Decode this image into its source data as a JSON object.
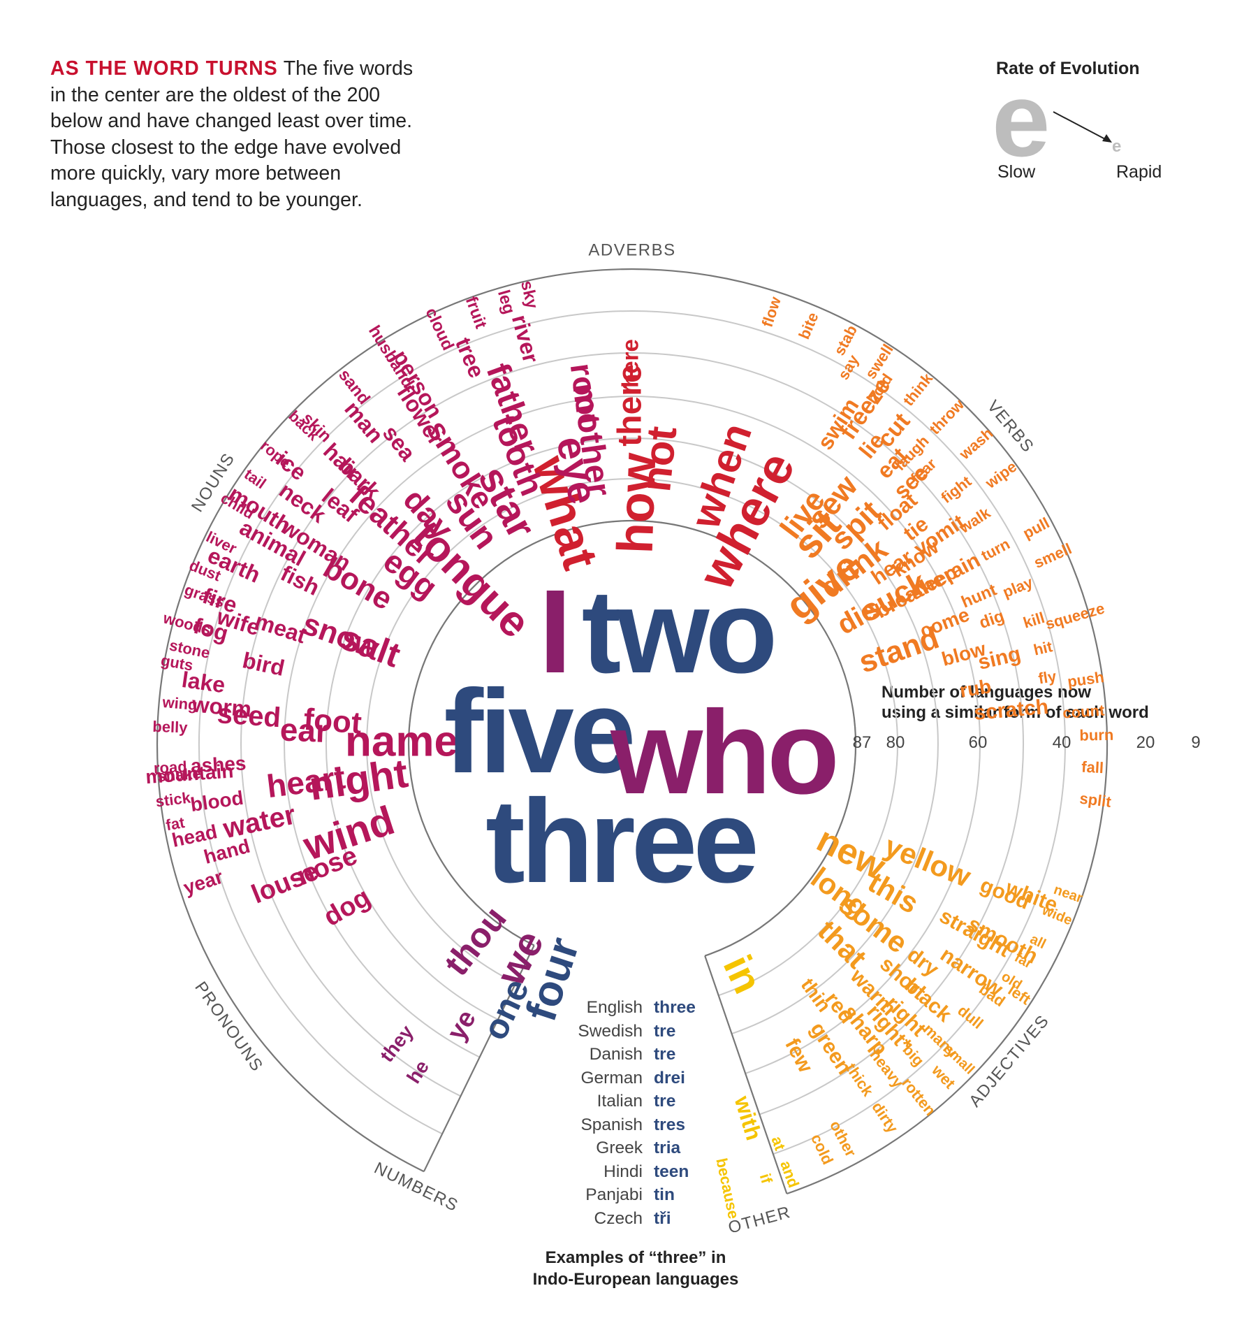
{
  "intro": {
    "heading": "AS THE WORD TURNS",
    "text": "The five words in the center are the oldest of the 200 below and have changed least over time. Those closest to the edge have evolved more quickly, vary more between languages, and tend to be younger."
  },
  "rate_legend": {
    "title": "Rate of Evolution",
    "big_glyph": "e",
    "small_glyph": "e",
    "slow_label": "Slow",
    "rapid_label": "Rapid"
  },
  "scale": {
    "caption_line1": "Number of languages now",
    "caption_line2": "using a similar form of each word",
    "ticks": [
      "87",
      "80",
      "60",
      "40",
      "20",
      "9"
    ]
  },
  "categories": [
    "ADVERBS",
    "VERBS",
    "ADJECTIVES",
    "OTHER",
    "NUMBERS",
    "PRONOUNS",
    "NOUNS"
  ],
  "examples": {
    "caption_line1": "Examples of “three” in",
    "caption_line2": "Indo-European languages",
    "rows": [
      {
        "language": "English",
        "word": "three"
      },
      {
        "language": "Swedish",
        "word": "tre"
      },
      {
        "language": "Danish",
        "word": "tre"
      },
      {
        "language": "German",
        "word": "drei"
      },
      {
        "language": "Italian",
        "word": "tre"
      },
      {
        "language": "Spanish",
        "word": "tres"
      },
      {
        "language": "Greek",
        "word": "tria"
      },
      {
        "language": "Hindi",
        "word": "teen"
      },
      {
        "language": "Panjabi",
        "word": "tin"
      },
      {
        "language": "Czech",
        "word": "tři"
      }
    ]
  },
  "colors": {
    "center_blue": "#2e4a7d",
    "center_purple": "#8a1f6a",
    "heading_red": "#c8102e",
    "ring_gray": "#c8c8c8"
  },
  "center_words": [
    {
      "word": "I",
      "color": "#8a1f6a"
    },
    {
      "word": "two",
      "color": "#2e4a7d"
    },
    {
      "word": "five",
      "color": "#2e4a7d"
    },
    {
      "word": "who",
      "color": "#8a1f6a"
    },
    {
      "word": "three",
      "color": "#2e4a7d"
    }
  ],
  "words": [
    {
      "w": "here",
      "c": "#d0202f"
    },
    {
      "w": "there",
      "c": "#d0202f"
    },
    {
      "w": "not",
      "c": "#d0202f"
    },
    {
      "w": "when",
      "c": "#d0202f"
    },
    {
      "w": "how",
      "c": "#d0202f"
    },
    {
      "w": "where",
      "c": "#d0202f"
    },
    {
      "w": "what",
      "c": "#d0202f"
    },
    {
      "w": "flow",
      "c": "#f07a22"
    },
    {
      "w": "bite",
      "c": "#f07a22"
    },
    {
      "w": "stab",
      "c": "#f07a22"
    },
    {
      "w": "swell",
      "c": "#f07a22"
    },
    {
      "w": "say",
      "c": "#f07a22"
    },
    {
      "w": "hold",
      "c": "#f07a22"
    },
    {
      "w": "think",
      "c": "#f07a22"
    },
    {
      "w": "throw",
      "c": "#f07a22"
    },
    {
      "w": "wash",
      "c": "#f07a22"
    },
    {
      "w": "wipe",
      "c": "#f07a22"
    },
    {
      "w": "pull",
      "c": "#f07a22"
    },
    {
      "w": "smell",
      "c": "#f07a22"
    },
    {
      "w": "squeeze",
      "c": "#f07a22"
    },
    {
      "w": "push",
      "c": "#f07a22"
    },
    {
      "w": "count",
      "c": "#f07a22"
    },
    {
      "w": "burn",
      "c": "#f07a22"
    },
    {
      "w": "fall",
      "c": "#f07a22"
    },
    {
      "w": "split",
      "c": "#f07a22"
    },
    {
      "w": "freeze",
      "c": "#f07a22"
    },
    {
      "w": "cut",
      "c": "#f07a22"
    },
    {
      "w": "laugh",
      "c": "#f07a22"
    },
    {
      "w": "fear",
      "c": "#f07a22"
    },
    {
      "w": "fight",
      "c": "#f07a22"
    },
    {
      "w": "walk",
      "c": "#f07a22"
    },
    {
      "w": "turn",
      "c": "#f07a22"
    },
    {
      "w": "play",
      "c": "#f07a22"
    },
    {
      "w": "kill",
      "c": "#f07a22"
    },
    {
      "w": "hit",
      "c": "#f07a22"
    },
    {
      "w": "fly",
      "c": "#f07a22"
    },
    {
      "w": "swim",
      "c": "#f07a22"
    },
    {
      "w": "lie",
      "c": "#f07a22"
    },
    {
      "w": "eat",
      "c": "#f07a22"
    },
    {
      "w": "see",
      "c": "#f07a22"
    },
    {
      "w": "float",
      "c": "#f07a22"
    },
    {
      "w": "tie",
      "c": "#f07a22"
    },
    {
      "w": "vomit",
      "c": "#f07a22"
    },
    {
      "w": "rain",
      "c": "#f07a22"
    },
    {
      "w": "hunt",
      "c": "#f07a22"
    },
    {
      "w": "dig",
      "c": "#f07a22"
    },
    {
      "w": "sing",
      "c": "#f07a22"
    },
    {
      "w": "scratch",
      "c": "#f07a22"
    },
    {
      "w": "know",
      "c": "#f07a22"
    },
    {
      "w": "sleep",
      "c": "#f07a22"
    },
    {
      "w": "hear",
      "c": "#f07a22"
    },
    {
      "w": "breathe",
      "c": "#f07a22"
    },
    {
      "w": "come",
      "c": "#f07a22"
    },
    {
      "w": "blow",
      "c": "#f07a22"
    },
    {
      "w": "rub",
      "c": "#f07a22"
    },
    {
      "w": "sew",
      "c": "#f07a22"
    },
    {
      "w": "spit",
      "c": "#f07a22"
    },
    {
      "w": "live",
      "c": "#f07a22"
    },
    {
      "w": "sit",
      "c": "#f07a22"
    },
    {
      "w": "drink",
      "c": "#f07a22"
    },
    {
      "w": "give",
      "c": "#f07a22"
    },
    {
      "w": "suck",
      "c": "#f07a22"
    },
    {
      "w": "die",
      "c": "#f07a22"
    },
    {
      "w": "stand",
      "c": "#f07a22"
    },
    {
      "w": "new",
      "c": "#f39a1e"
    },
    {
      "w": "long",
      "c": "#f39a1e"
    },
    {
      "w": "this",
      "c": "#f39a1e"
    },
    {
      "w": "yellow",
      "c": "#f39a1e"
    },
    {
      "w": "that",
      "c": "#f39a1e"
    },
    {
      "w": "some",
      "c": "#f39a1e"
    },
    {
      "w": "thin",
      "c": "#f39a1e"
    },
    {
      "w": "red",
      "c": "#f39a1e"
    },
    {
      "w": "warm",
      "c": "#f39a1e"
    },
    {
      "w": "short",
      "c": "#f39a1e"
    },
    {
      "w": "dry",
      "c": "#f39a1e"
    },
    {
      "w": "straight",
      "c": "#f39a1e"
    },
    {
      "w": "good",
      "c": "#f39a1e"
    },
    {
      "w": "green",
      "c": "#f39a1e"
    },
    {
      "w": "sharp",
      "c": "#f39a1e"
    },
    {
      "w": "right*",
      "c": "#f39a1e"
    },
    {
      "w": "right",
      "c": "#f39a1e"
    },
    {
      "w": "black",
      "c": "#f39a1e"
    },
    {
      "w": "narrow",
      "c": "#f39a1e"
    },
    {
      "w": "smooth",
      "c": "#f39a1e"
    },
    {
      "w": "white",
      "c": "#f39a1e"
    },
    {
      "w": "few",
      "c": "#f39a1e"
    },
    {
      "w": "thick",
      "c": "#f39a1e"
    },
    {
      "w": "heavy",
      "c": "#f39a1e"
    },
    {
      "w": "big",
      "c": "#f39a1e"
    },
    {
      "w": "many",
      "c": "#f39a1e"
    },
    {
      "w": "dull",
      "c": "#f39a1e"
    },
    {
      "w": "bad",
      "c": "#f39a1e"
    },
    {
      "w": "old",
      "c": "#f39a1e"
    },
    {
      "w": "far",
      "c": "#f39a1e"
    },
    {
      "w": "all",
      "c": "#f39a1e"
    },
    {
      "w": "wide",
      "c": "#f39a1e"
    },
    {
      "w": "near",
      "c": "#f39a1e"
    },
    {
      "w": "small",
      "c": "#f39a1e"
    },
    {
      "w": "left",
      "c": "#f39a1e"
    },
    {
      "w": "cold",
      "c": "#f39a1e"
    },
    {
      "w": "other",
      "c": "#f39a1e"
    },
    {
      "w": "dirty",
      "c": "#f39a1e"
    },
    {
      "w": "rotten",
      "c": "#f39a1e"
    },
    {
      "w": "wet",
      "c": "#f39a1e"
    },
    {
      "w": "in",
      "c": "#f5c400"
    },
    {
      "w": "with",
      "c": "#f5c400"
    },
    {
      "w": "at",
      "c": "#f5c400"
    },
    {
      "w": "because",
      "c": "#f5c400"
    },
    {
      "w": "if",
      "c": "#f5c400"
    },
    {
      "w": "and",
      "c": "#f5c400"
    },
    {
      "w": "four",
      "c": "#2e4a7d"
    },
    {
      "w": "one",
      "c": "#2e4a7d"
    },
    {
      "w": "we",
      "c": "#8a1f6a"
    },
    {
      "w": "thou",
      "c": "#8a1f6a"
    },
    {
      "w": "ye",
      "c": "#8a1f6a"
    },
    {
      "w": "they",
      "c": "#8a1f6a"
    },
    {
      "w": "he",
      "c": "#8a1f6a"
    },
    {
      "w": "name",
      "c": "#b5165a"
    },
    {
      "w": "tongue",
      "c": "#b5165a"
    },
    {
      "w": "sun",
      "c": "#b5165a"
    },
    {
      "w": "star",
      "c": "#b5165a"
    },
    {
      "w": "eye",
      "c": "#b5165a"
    },
    {
      "w": "night",
      "c": "#b5165a"
    },
    {
      "w": "salt",
      "c": "#b5165a"
    },
    {
      "w": "egg",
      "c": "#b5165a"
    },
    {
      "w": "day",
      "c": "#b5165a"
    },
    {
      "w": "tooth",
      "c": "#b5165a"
    },
    {
      "w": "mother",
      "c": "#b5165a"
    },
    {
      "w": "father",
      "c": "#b5165a"
    },
    {
      "w": "root",
      "c": "#b5165a"
    },
    {
      "w": "smoke",
      "c": "#b5165a"
    },
    {
      "w": "feather",
      "c": "#b5165a"
    },
    {
      "w": "bone",
      "c": "#b5165a"
    },
    {
      "w": "snow",
      "c": "#b5165a"
    },
    {
      "w": "foot",
      "c": "#b5165a"
    },
    {
      "w": "ear",
      "c": "#b5165a"
    },
    {
      "w": "heart",
      "c": "#b5165a"
    },
    {
      "w": "wind",
      "c": "#b5165a"
    },
    {
      "w": "nose",
      "c": "#b5165a"
    },
    {
      "w": "dog",
      "c": "#b5165a"
    },
    {
      "w": "louse",
      "c": "#b5165a"
    },
    {
      "w": "water",
      "c": "#b5165a"
    },
    {
      "w": "seed",
      "c": "#b5165a"
    },
    {
      "w": "bird",
      "c": "#b5165a"
    },
    {
      "w": "meat",
      "c": "#b5165a"
    },
    {
      "w": "fish",
      "c": "#b5165a"
    },
    {
      "w": "woman",
      "c": "#b5165a"
    },
    {
      "w": "leaf",
      "c": "#b5165a"
    },
    {
      "w": "bark",
      "c": "#b5165a"
    },
    {
      "w": "sea",
      "c": "#b5165a"
    },
    {
      "w": "flower",
      "c": "#b5165a"
    },
    {
      "w": "person",
      "c": "#b5165a"
    },
    {
      "w": "tree",
      "c": "#b5165a"
    },
    {
      "w": "river",
      "c": "#b5165a"
    },
    {
      "w": "man",
      "c": "#b5165a"
    },
    {
      "w": "hair",
      "c": "#b5165a"
    },
    {
      "w": "neck",
      "c": "#b5165a"
    },
    {
      "w": "animal",
      "c": "#b5165a"
    },
    {
      "w": "wife",
      "c": "#b5165a"
    },
    {
      "w": "worm",
      "c": "#b5165a"
    },
    {
      "w": "ashes",
      "c": "#b5165a"
    },
    {
      "w": "blood",
      "c": "#b5165a"
    },
    {
      "w": "hand",
      "c": "#b5165a"
    },
    {
      "w": "mouth",
      "c": "#b5165a"
    },
    {
      "w": "ice",
      "c": "#b5165a"
    },
    {
      "w": "earth",
      "c": "#b5165a"
    },
    {
      "w": "fire",
      "c": "#b5165a"
    },
    {
      "w": "fog",
      "c": "#b5165a"
    },
    {
      "w": "lake",
      "c": "#b5165a"
    },
    {
      "w": "mountain",
      "c": "#b5165a"
    },
    {
      "w": "head",
      "c": "#b5165a"
    },
    {
      "w": "year",
      "c": "#b5165a"
    },
    {
      "w": "skin",
      "c": "#b5165a"
    },
    {
      "w": "sand",
      "c": "#b5165a"
    },
    {
      "w": "husband",
      "c": "#b5165a"
    },
    {
      "w": "cloud",
      "c": "#b5165a"
    },
    {
      "w": "fruit",
      "c": "#b5165a"
    },
    {
      "w": "leg",
      "c": "#b5165a"
    },
    {
      "w": "sky",
      "c": "#b5165a"
    },
    {
      "w": "back",
      "c": "#b5165a"
    },
    {
      "w": "rope",
      "c": "#b5165a"
    },
    {
      "w": "tail",
      "c": "#b5165a"
    },
    {
      "w": "child",
      "c": "#b5165a"
    },
    {
      "w": "liver",
      "c": "#b5165a"
    },
    {
      "w": "dust",
      "c": "#b5165a"
    },
    {
      "w": "grass",
      "c": "#b5165a"
    },
    {
      "w": "woods",
      "c": "#b5165a"
    },
    {
      "w": "stone",
      "c": "#b5165a"
    },
    {
      "w": "guts",
      "c": "#b5165a"
    },
    {
      "w": "wing",
      "c": "#b5165a"
    },
    {
      "w": "belly",
      "c": "#b5165a"
    },
    {
      "w": "road",
      "c": "#b5165a"
    },
    {
      "w": "snake",
      "c": "#b5165a"
    },
    {
      "w": "stick",
      "c": "#b5165a"
    },
    {
      "w": "fat",
      "c": "#b5165a"
    }
  ]
}
